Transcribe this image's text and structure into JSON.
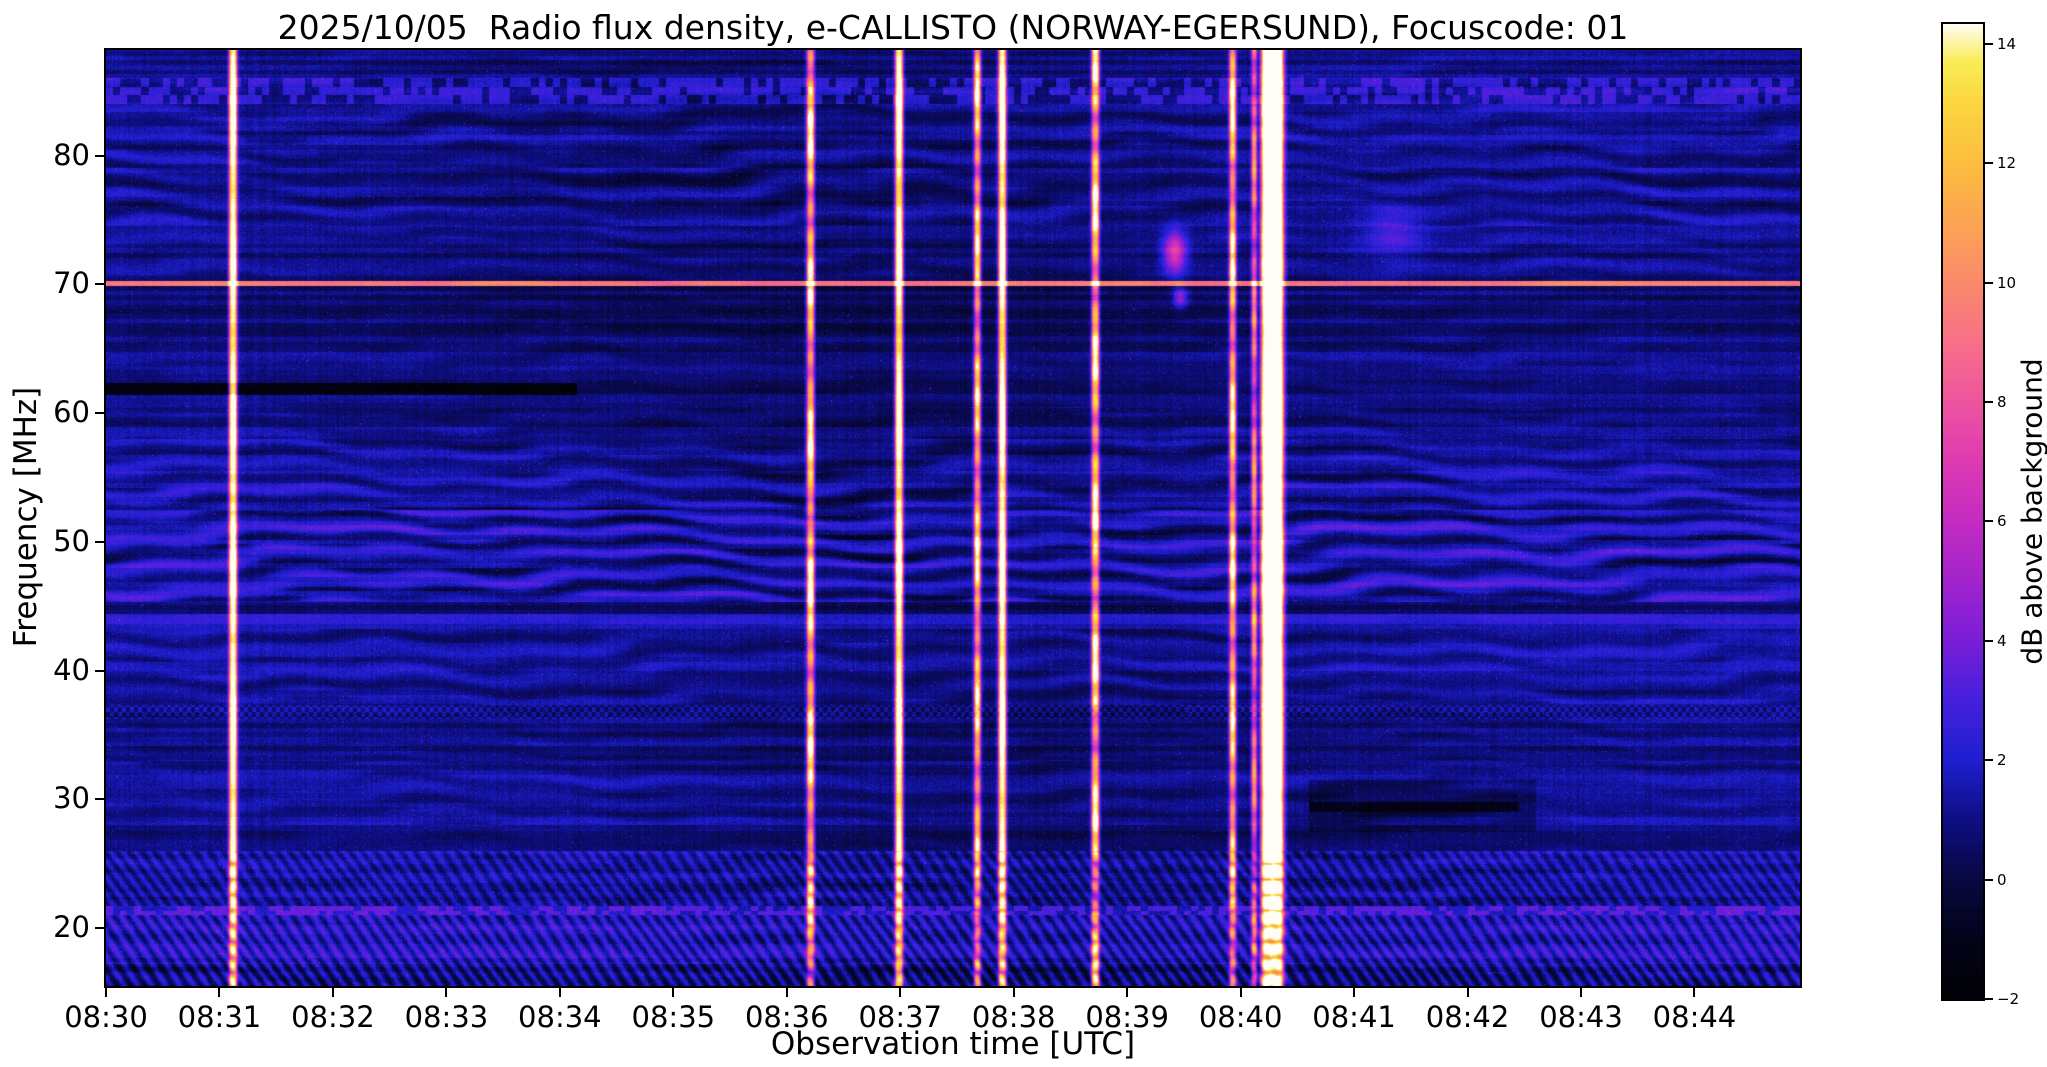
{
  "chart_data": {
    "type": "heatmap",
    "title": "2025/10/05  Radio flux density, e-CALLISTO (NORWAY-EGERSUND), Focuscode: 01",
    "date": "2025/10/05",
    "station": "NORWAY-EGERSUND",
    "focuscode": "01",
    "xlabel": "Observation time [UTC]",
    "ylabel": "Frequency [MHz]",
    "colorbar_label": "dB above background",
    "x_ticks": [
      "08:30",
      "08:31",
      "08:32",
      "08:33",
      "08:34",
      "08:35",
      "08:36",
      "08:37",
      "08:38",
      "08:39",
      "08:40",
      "08:41",
      "08:42",
      "08:43",
      "08:44"
    ],
    "x_tick_minutes": [
      0,
      1,
      2,
      3,
      4,
      5,
      6,
      7,
      8,
      9,
      10,
      11,
      12,
      13,
      14
    ],
    "time_start_utc": "08:30",
    "duration_min": 14.93,
    "ylim": [
      15.5,
      88.2
    ],
    "y_ticks": [
      20,
      30,
      40,
      50,
      60,
      70,
      80
    ],
    "clim": [
      -2,
      14.33
    ],
    "colorbar_ticks": [
      -2,
      0,
      2,
      4,
      6,
      8,
      10,
      12,
      14
    ],
    "grid": false,
    "legend": false,
    "colormap_stops": [
      [
        0.0,
        "#020207"
      ],
      [
        0.061,
        "#03031a"
      ],
      [
        0.1225,
        "#080840"
      ],
      [
        0.1837,
        "#0e0e85"
      ],
      [
        0.2449,
        "#1f1fd0"
      ],
      [
        0.3062,
        "#4520dd"
      ],
      [
        0.3674,
        "#7a1ed8"
      ],
      [
        0.4286,
        "#a324cd"
      ],
      [
        0.4899,
        "#c42bc0"
      ],
      [
        0.5511,
        "#de3ab2"
      ],
      [
        0.6124,
        "#ee559e"
      ],
      [
        0.6736,
        "#f77087"
      ],
      [
        0.7348,
        "#fb8a6b"
      ],
      [
        0.7961,
        "#fca452"
      ],
      [
        0.8573,
        "#fcbe3e"
      ],
      [
        0.9185,
        "#fbd63f"
      ],
      [
        0.96,
        "#f9ec55"
      ],
      [
        1.0,
        "#fffdf5"
      ]
    ],
    "bursts": [
      {
        "time_utc": "08:31:07",
        "time_min": 1.12,
        "core_s": 1.2,
        "sigma_s": 1.1,
        "peak_db": 16,
        "saturate": true
      },
      {
        "time_utc": "08:36:13",
        "time_min": 6.21,
        "core_s": 1.0,
        "sigma_s": 1.1,
        "peak_db": 15,
        "saturate": false
      },
      {
        "time_utc": "08:36:59",
        "time_min": 6.99,
        "core_s": 1.2,
        "sigma_s": 1.1,
        "peak_db": 16,
        "saturate": true
      },
      {
        "time_utc": "08:37:41",
        "time_min": 7.68,
        "core_s": 0.8,
        "sigma_s": 1.0,
        "peak_db": 14,
        "saturate": false
      },
      {
        "time_utc": "08:37:54",
        "time_min": 7.9,
        "core_s": 1.2,
        "sigma_s": 1.1,
        "peak_db": 16,
        "saturate": true
      },
      {
        "time_utc": "08:38:43",
        "time_min": 8.72,
        "core_s": 1.0,
        "sigma_s": 1.1,
        "peak_db": 15,
        "saturate": false
      },
      {
        "time_utc": "08:39:56",
        "time_min": 9.93,
        "core_s": 0.8,
        "sigma_s": 1.0,
        "peak_db": 14.5,
        "saturate": false
      },
      {
        "time_utc": "08:40:07",
        "time_min": 10.12,
        "core_s": 0.5,
        "sigma_s": 0.9,
        "peak_db": 10,
        "saturate": false
      },
      {
        "time_utc": "08:40:17",
        "time_min": 10.28,
        "core_s": 7.5,
        "sigma_s": 1.6,
        "peak_db": 20,
        "saturate": true
      }
    ],
    "bands": [
      {
        "f_lo": 15.5,
        "f_hi": 17.2,
        "base_db": 0.8,
        "fringe_amp": 0.5,
        "diag_amp": 1.2
      },
      {
        "f_lo": 17.2,
        "f_hi": 21.0,
        "base_db": 1.8,
        "fringe_amp": 0.4,
        "diag_amp": 1.1
      },
      {
        "f_lo": 21.0,
        "f_hi": 21.7,
        "base_db": 2.1,
        "fringe_amp": 0.2,
        "dash": true
      },
      {
        "f_lo": 21.7,
        "f_hi": 26.0,
        "base_db": 1.3,
        "fringe_amp": 0.5,
        "diag_amp": 0.8
      },
      {
        "f_lo": 26.0,
        "f_hi": 28.0,
        "base_db": 0.5,
        "fringe_amp": 0.3
      },
      {
        "f_lo": 28.0,
        "f_hi": 33.0,
        "base_db": 1.0,
        "fringe_amp": 0.5
      },
      {
        "f_lo": 33.0,
        "f_hi": 36.2,
        "base_db": 0.8,
        "fringe_amp": 0.4
      },
      {
        "f_lo": 36.2,
        "f_hi": 37.3,
        "base_db": 1.1,
        "fringe_amp": 0.3,
        "checker": true
      },
      {
        "f_lo": 37.3,
        "f_hi": 43.2,
        "base_db": 1.1,
        "fringe_amp": 0.75
      },
      {
        "f_lo": 43.2,
        "f_hi": 44.4,
        "base_db": 1.9,
        "fringe_amp": 0.3
      },
      {
        "f_lo": 44.4,
        "f_hi": 45.3,
        "base_db": 0.4,
        "fringe_amp": 0.2
      },
      {
        "f_lo": 45.3,
        "f_hi": 52.5,
        "base_db": 1.5,
        "fringe_amp": 1.7,
        "period_mhz": 1.8
      },
      {
        "f_lo": 52.5,
        "f_hi": 55.5,
        "base_db": 1.2,
        "fringe_amp": 1.2
      },
      {
        "f_lo": 55.5,
        "f_hi": 58.0,
        "base_db": 1.0,
        "fringe_amp": 0.9
      },
      {
        "f_lo": 58.0,
        "f_hi": 60.5,
        "base_db": 0.8,
        "fringe_amp": 0.5
      },
      {
        "f_lo": 60.5,
        "f_hi": 63.0,
        "base_db": 0.7,
        "fringe_amp": 0.3
      },
      {
        "f_lo": 63.0,
        "f_hi": 66.0,
        "base_db": 0.7,
        "fringe_amp": 0.4
      },
      {
        "f_lo": 66.0,
        "f_hi": 69.9,
        "base_db": 0.5,
        "fringe_amp": 0.3
      },
      {
        "f_lo": 69.9,
        "f_hi": 70.25,
        "base_db": 9.0,
        "fringe_amp": 0.8
      },
      {
        "f_lo": 70.25,
        "f_hi": 74.5,
        "base_db": 0.8,
        "fringe_amp": 0.5
      },
      {
        "f_lo": 74.5,
        "f_hi": 79.0,
        "base_db": 1.0,
        "fringe_amp": 0.9,
        "period_mhz": 2.1
      },
      {
        "f_lo": 79.0,
        "f_hi": 84.0,
        "base_db": 1.0,
        "fringe_amp": 0.8,
        "period_mhz": 2.1
      },
      {
        "f_lo": 84.0,
        "f_hi": 86.0,
        "base_db": 1.6,
        "fringe_amp": 0.5,
        "dash": true
      },
      {
        "f_lo": 86.0,
        "f_hi": 88.2,
        "base_db": 0.8,
        "fringe_amp": 0.4
      }
    ],
    "features": {
      "dark_lines": [
        {
          "f_lo": 61.4,
          "f_hi": 62.3,
          "t_lo": 0,
          "t_hi": 4.15,
          "depth_db": 2.3
        },
        {
          "f_lo": 29.0,
          "f_hi": 29.8,
          "t_lo": 10.6,
          "t_hi": 12.45,
          "depth_db": 1.6
        },
        {
          "f_lo": 27.5,
          "f_hi": 31.5,
          "t_lo": 10.6,
          "t_hi": 12.6,
          "depth_db": 0.7
        }
      ],
      "blobs": [
        {
          "time_min": 9.42,
          "freq_mhz": 72.5,
          "dt_min": 0.1,
          "df_mhz": 1.6,
          "amp_db": 6.5
        },
        {
          "time_min": 9.47,
          "freq_mhz": 69.0,
          "dt_min": 0.06,
          "df_mhz": 0.8,
          "amp_db": 4.0
        },
        {
          "time_min": 11.35,
          "freq_mhz": 74.0,
          "dt_min": 0.25,
          "df_mhz": 2.2,
          "amp_db": 2.0
        }
      ]
    }
  }
}
